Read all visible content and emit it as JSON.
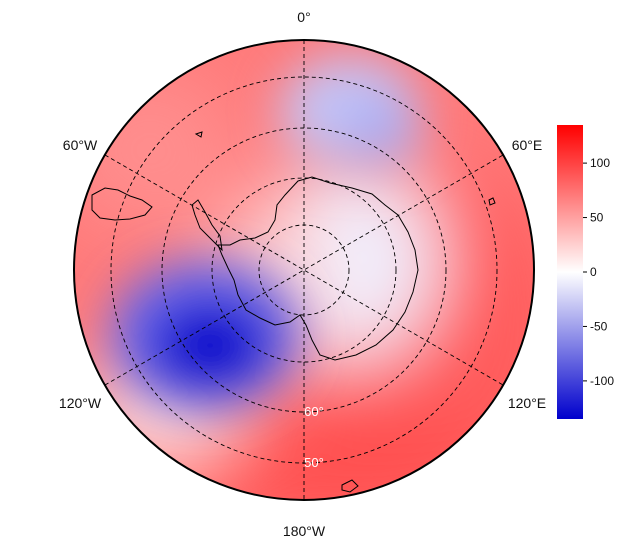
{
  "map": {
    "projection": "south-polar-stereographic",
    "colors": {
      "positive": "#ff0000",
      "neutral": "#ffffff",
      "negative": "#0000cc"
    },
    "longitude_labels": {
      "top": "0°",
      "upper_left": "60°W",
      "upper_right": "60°E",
      "lower_left": "120°W",
      "lower_right": "120°E",
      "bottom": "180°W"
    },
    "latitude_labels": {
      "inner": "60°",
      "outer": "50°"
    },
    "field_features": [
      {
        "kind": "negative-anomaly",
        "region": "Amundsen–Bellingshausen Sea (approx. 120°W, 55°S)",
        "value": -130
      },
      {
        "kind": "negative-anomaly",
        "region": "South Atlantic/Indian (approx. 10°E, 50°S)",
        "value": -35
      },
      {
        "kind": "positive-anomaly",
        "region": "Ocean ring, Indian & Pacific sectors",
        "value": 80
      },
      {
        "kind": "positive-anomaly",
        "region": "Drake Passage / South America",
        "value": 60
      }
    ]
  },
  "colorbar": {
    "min": -135,
    "max": 135,
    "ticks": [
      {
        "value": 100,
        "label": "100"
      },
      {
        "value": 50,
        "label": "50"
      },
      {
        "value": 0,
        "label": "0"
      },
      {
        "value": -50,
        "label": "-50"
      },
      {
        "value": -100,
        "label": "-100"
      }
    ]
  }
}
